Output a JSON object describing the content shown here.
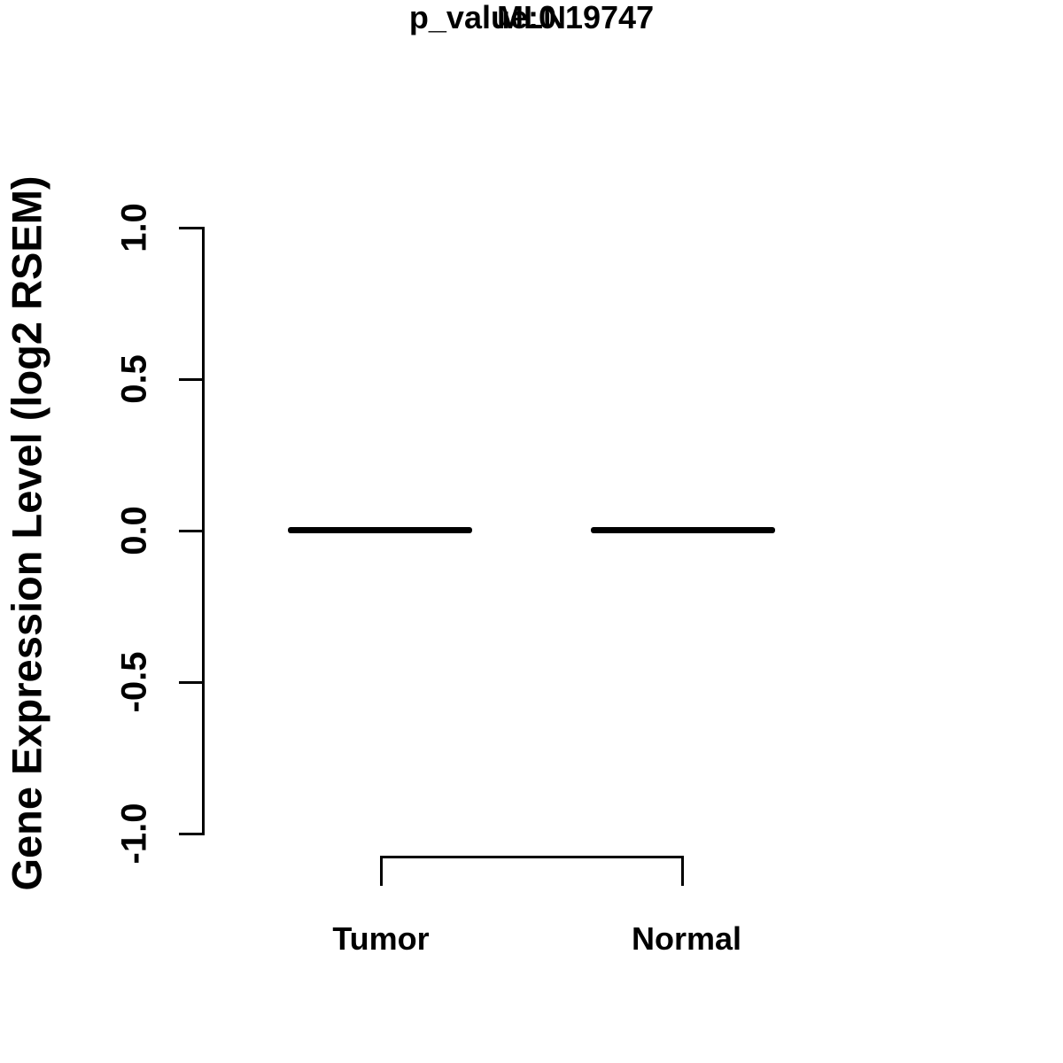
{
  "title": {
    "gene": "MLN",
    "p_value_line": "p_value:0.19747"
  },
  "y_axis": {
    "label": "Gene Expression Level (log2 RSEM)",
    "ticks": [
      "1.0",
      "0.5",
      "0.0",
      "-0.5",
      "-1.0"
    ]
  },
  "x_axis": {
    "groups": [
      "Tumor",
      "Normal"
    ]
  },
  "colors": {
    "ink": "#000000",
    "background": "#ffffff"
  },
  "chart_data": {
    "type": "boxplot",
    "title": "MLN",
    "subtitle": "p_value:0.19747",
    "p_value": 0.19747,
    "categories": [
      "Tumor",
      "Normal"
    ],
    "series": [
      {
        "name": "Tumor",
        "median": 0.0,
        "q1": 0.0,
        "q3": 0.0,
        "whisker_low": 0.0,
        "whisker_high": 0.0
      },
      {
        "name": "Normal",
        "median": 0.0,
        "q1": 0.0,
        "q3": 0.0,
        "whisker_low": 0.0,
        "whisker_high": 0.0
      }
    ],
    "xlabel": "",
    "ylabel": "Gene Expression Level (log2 RSEM)",
    "ylim": [
      -1.0,
      1.0
    ],
    "yticks": [
      -1.0,
      -0.5,
      0.0,
      0.5,
      1.0
    ],
    "grid": false,
    "legend": false,
    "annotations": [
      {
        "type": "comparison-bracket",
        "between": [
          "Tumor",
          "Normal"
        ]
      }
    ]
  }
}
